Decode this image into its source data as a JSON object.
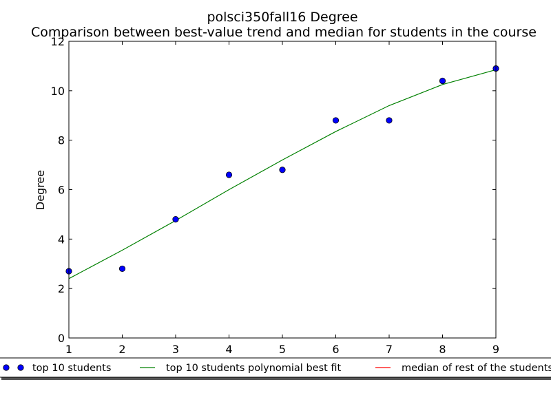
{
  "chart_data": {
    "type": "line",
    "title": "polsci350fall16 Degree",
    "subtitle": "Comparison between best-value trend and median for students in the course",
    "xlabel": "",
    "ylabel": "Degree",
    "xlim": [
      1,
      9
    ],
    "ylim": [
      0,
      12
    ],
    "xticks": [
      "1",
      "2",
      "3",
      "4",
      "5",
      "6",
      "7",
      "8",
      "9"
    ],
    "yticks": [
      "0",
      "2",
      "4",
      "6",
      "8",
      "10",
      "12"
    ],
    "grid": false,
    "legend_position": "bottom",
    "series": [
      {
        "name": "top 10 students",
        "kind": "scatter",
        "color": "#0000ff",
        "x": [
          1,
          2,
          3,
          4,
          5,
          6,
          7,
          8,
          9
        ],
        "y": [
          2.7,
          2.8,
          4.8,
          6.6,
          6.8,
          8.8,
          8.8,
          10.4,
          10.9
        ]
      },
      {
        "name": "top 10 students polynomial best fit",
        "kind": "line",
        "color": "#008000",
        "x": [
          1,
          2,
          3,
          4,
          5,
          6,
          7,
          8,
          9
        ],
        "y": [
          2.4,
          3.55,
          4.75,
          6.0,
          7.2,
          8.35,
          9.4,
          10.25,
          10.85
        ]
      },
      {
        "name": "median of rest of the students",
        "kind": "line",
        "color": "#ff0000",
        "x": [],
        "y": []
      }
    ]
  }
}
